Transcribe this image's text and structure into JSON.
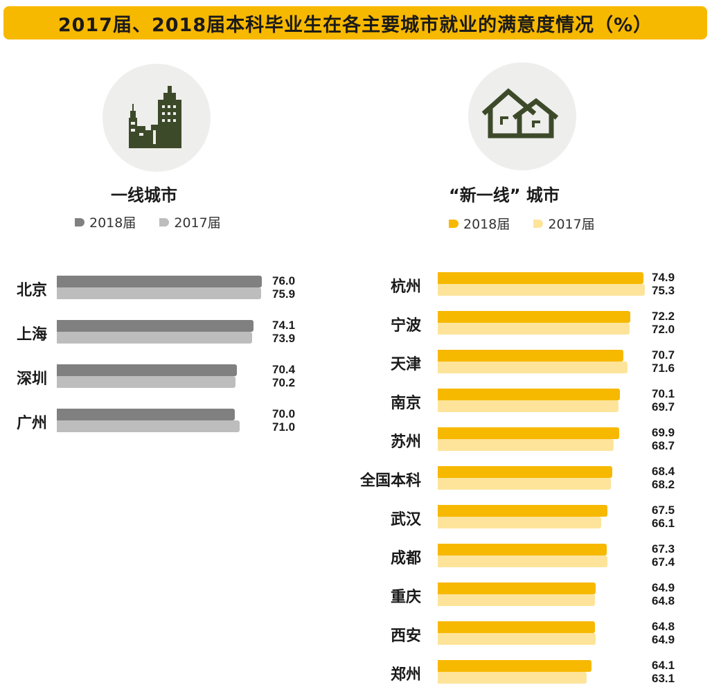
{
  "title": "2017届、2018届本科毕业生在各主要城市就业的满意度情况（%）",
  "colors": {
    "title_bg": "#f7b800",
    "left_2018": "#808080",
    "left_2017": "#bdbdbd",
    "right_2018": "#f7b800",
    "right_2017": "#fde49a",
    "icon": "#3d4a2a"
  },
  "icons": {
    "left": "city-buildings-icon",
    "right": "houses-icon"
  },
  "chart_data": [
    {
      "type": "bar",
      "orientation": "horizontal",
      "title": "一线城市",
      "categories": [
        "北京",
        "上海",
        "深圳",
        "广州"
      ],
      "series": [
        {
          "name": "2018届",
          "values": [
            76.0,
            74.1,
            70.4,
            70.0
          ],
          "value_labels": [
            "76.0",
            "74.1",
            "70.4",
            "70.0"
          ]
        },
        {
          "name": "2017届",
          "values": [
            75.9,
            73.9,
            70.2,
            71.0
          ],
          "value_labels": [
            "75.9",
            "73.9",
            "70.2",
            "71.0"
          ]
        }
      ],
      "legend_position": "top",
      "grid": false
    },
    {
      "type": "bar",
      "orientation": "horizontal",
      "title": "“新一线” 城市",
      "categories": [
        "杭州",
        "宁波",
        "天津",
        "南京",
        "苏州",
        "全国本科",
        "武汉",
        "成都",
        "重庆",
        "西安",
        "郑州"
      ],
      "series": [
        {
          "name": "2018届",
          "values": [
            74.9,
            72.2,
            70.7,
            70.1,
            69.9,
            68.4,
            67.5,
            67.3,
            64.9,
            64.8,
            64.1
          ],
          "value_labels": [
            "74.9",
            "72.2",
            "70.7",
            "70.1",
            "69.9",
            "68.4",
            "67.5",
            "67.3",
            "64.9",
            "64.8",
            "64.1"
          ]
        },
        {
          "name": "2017届",
          "values": [
            75.3,
            72.0,
            71.6,
            69.7,
            68.7,
            68.2,
            66.1,
            67.4,
            64.8,
            64.9,
            63.1
          ],
          "value_labels": [
            "75.3",
            "72.0",
            "71.6",
            "69.7",
            "68.7",
            "68.2",
            "66.1",
            "67.4",
            "64.8",
            "64.9",
            "63.1"
          ]
        }
      ],
      "legend_position": "top",
      "grid": false
    }
  ]
}
